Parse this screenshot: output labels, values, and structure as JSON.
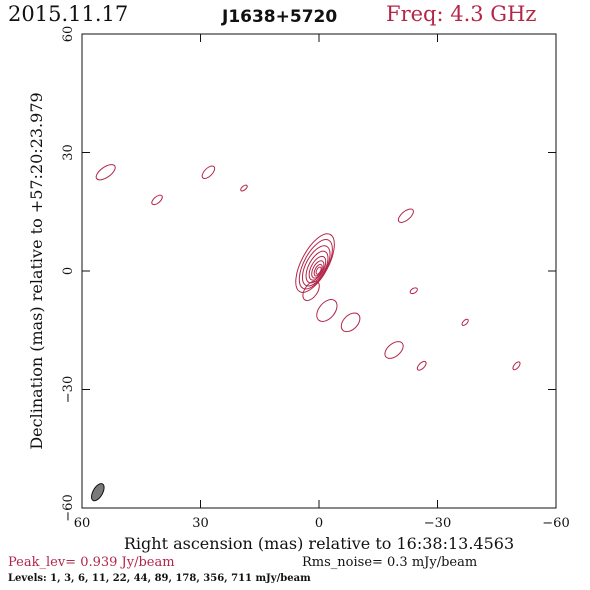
{
  "header": {
    "date": "2015.11.17",
    "source": "J1638+5720",
    "frequency": "Freq: 4.3 GHz"
  },
  "footer": {
    "peak": "Peak_lev=  0.939 Jy/beam",
    "rms": "Rms_noise=  0.3 mJy/beam",
    "levels": "Levels:   1,   3,   6,   11,   22,   44,   89,  178,  356,  711  mJy/beam"
  },
  "colors": {
    "contour": "#b3264a",
    "beam_fill": "#7a7a7a",
    "axes": "#111111"
  },
  "chart_data": {
    "type": "contour",
    "title": "J1638+5720",
    "xlabel": "Right ascension (mas) relative to 16:38:13.4563",
    "ylabel": "Declination (mas) relative to +57:20:23.979",
    "xlim": [
      60,
      -60
    ],
    "ylim": [
      -60,
      60
    ],
    "x_ticks": [
      60,
      30,
      0,
      -30,
      -60
    ],
    "y_ticks": [
      -60,
      -30,
      0,
      30,
      60
    ],
    "x_tick_labels": [
      "60",
      "30",
      "0",
      "−30",
      "−60"
    ],
    "y_tick_labels": [
      "−60",
      "−30",
      "0",
      "30",
      "60"
    ],
    "contour_levels_mJy": [
      1,
      3,
      6,
      11,
      22,
      44,
      89,
      178,
      356,
      711
    ],
    "peak_Jy_per_beam": 0.939,
    "rms_noise_mJy_per_beam": 0.3,
    "core": {
      "x": 0,
      "y": 0,
      "angle_deg": 62,
      "levels": [
        {
          "rx": 1.0,
          "ry": 0.5,
          "dx": 0.1,
          "dy": 0.1
        },
        {
          "rx": 1.6,
          "ry": 0.8,
          "dx": 0.2,
          "dy": 0.2
        },
        {
          "rx": 2.4,
          "ry": 1.2,
          "dx": 0.3,
          "dy": 0.4
        },
        {
          "rx": 3.3,
          "ry": 1.6,
          "dx": 0.4,
          "dy": 0.7
        },
        {
          "rx": 4.4,
          "ry": 2.1,
          "dx": 0.5,
          "dy": 1.0
        },
        {
          "rx": 5.6,
          "ry": 2.6,
          "dx": 0.7,
          "dy": 1.3
        },
        {
          "rx": 6.9,
          "ry": 3.0,
          "dx": 0.8,
          "dy": 1.7
        },
        {
          "rx": 8.2,
          "ry": 3.4,
          "dx": 1.0,
          "dy": 2.0
        }
      ]
    },
    "components": [
      {
        "x": 54,
        "y": 25,
        "rx": 2.8,
        "ry": 1.3,
        "angle_deg": 35
      },
      {
        "x": 41,
        "y": 18,
        "rx": 1.6,
        "ry": 0.8,
        "angle_deg": 40
      },
      {
        "x": 28,
        "y": 25,
        "rx": 2.0,
        "ry": 1.0,
        "angle_deg": 45
      },
      {
        "x": 19,
        "y": 21,
        "rx": 1.0,
        "ry": 0.5,
        "angle_deg": 40
      },
      {
        "x": -22,
        "y": 14,
        "rx": 2.3,
        "ry": 1.1,
        "angle_deg": 40
      },
      {
        "x": -24,
        "y": -5,
        "rx": 1.0,
        "ry": 0.6,
        "angle_deg": 30
      },
      {
        "x": -37,
        "y": -13,
        "rx": 1.0,
        "ry": 0.5,
        "angle_deg": 45
      },
      {
        "x": -50,
        "y": -24,
        "rx": 1.2,
        "ry": 0.6,
        "angle_deg": 50
      },
      {
        "x": -26,
        "y": -24,
        "rx": 1.4,
        "ry": 0.7,
        "angle_deg": 45
      },
      {
        "x": -19,
        "y": -20,
        "rx": 2.7,
        "ry": 1.6,
        "angle_deg": 40
      },
      {
        "x": -8,
        "y": -13,
        "rx": 2.8,
        "ry": 1.8,
        "angle_deg": 45
      },
      {
        "x": -2,
        "y": -10,
        "rx": 3.2,
        "ry": 2.0,
        "angle_deg": 50
      },
      {
        "x": 2,
        "y": -5,
        "rx": 2.8,
        "ry": 1.6,
        "angle_deg": 55
      }
    ],
    "beam": {
      "x": 56,
      "y": -56,
      "rx": 2.4,
      "ry": 1.2,
      "angle_deg": 60
    }
  }
}
